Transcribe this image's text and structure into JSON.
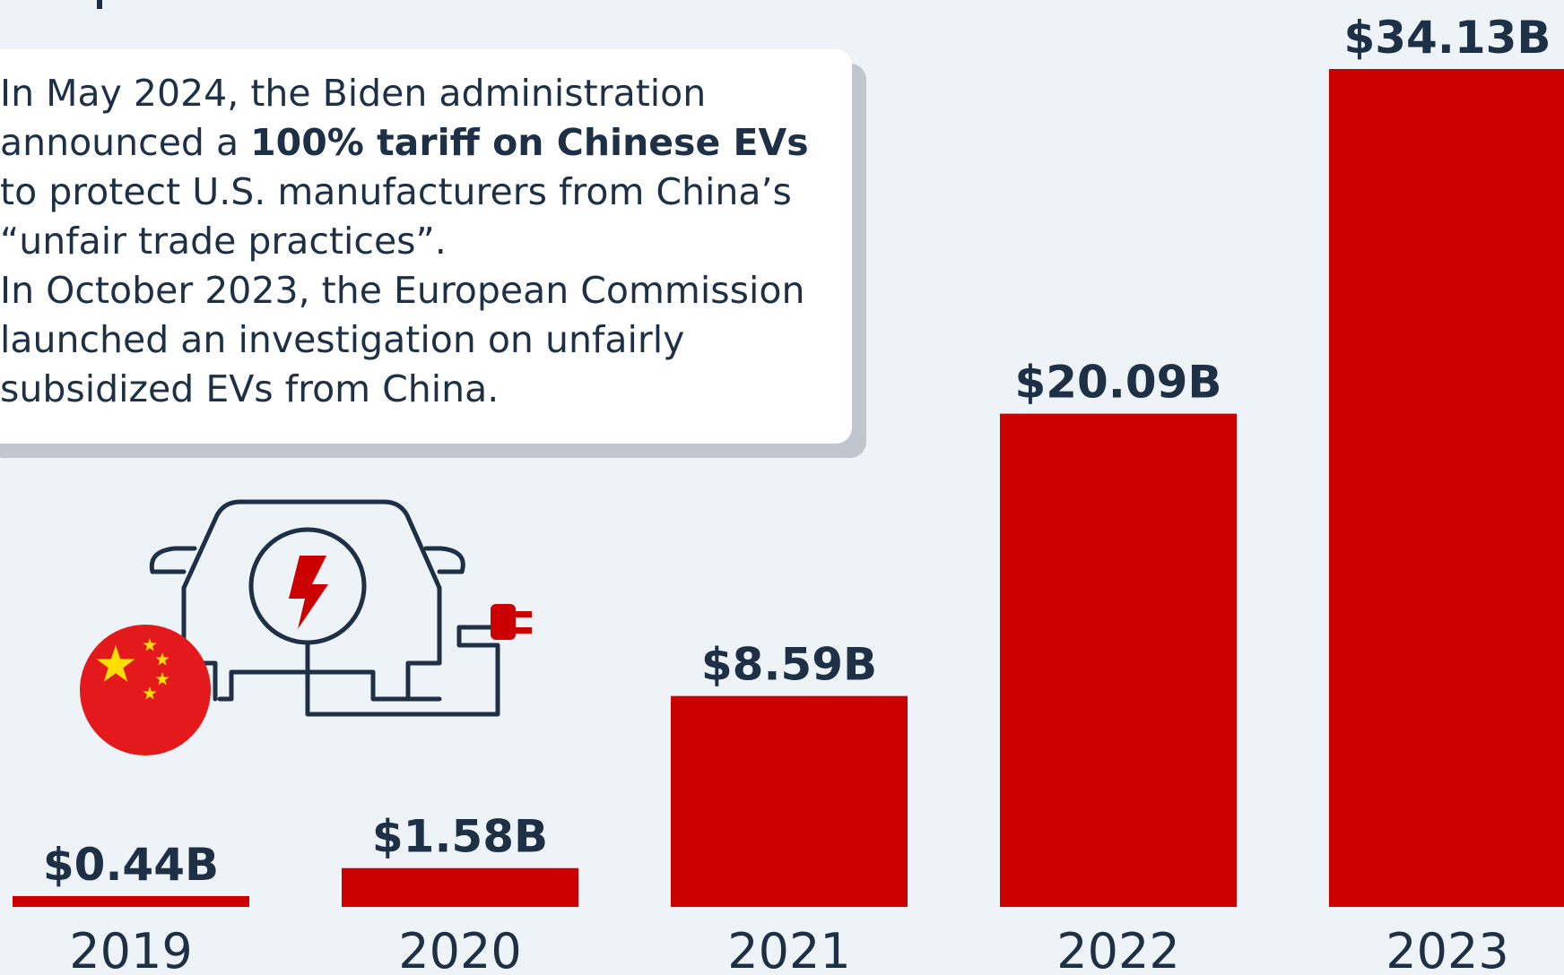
{
  "note": {
    "line1": "In May 2024, the Biden administration",
    "line2_pre": "announced a ",
    "line2_bold": "100% tariff on Chinese EVs",
    "line3": "to protect U.S. manufacturers from China’s",
    "line4": "“unfair trade practices”.",
    "line5": "In October 2023, the European Commission",
    "line6": "launched an investigation on unfairly",
    "line7": "subsidized EVs from China."
  },
  "colors": {
    "bar": "#cc0000",
    "text": "#1e3045",
    "background": "#eef3f8",
    "flag_red": "#e3191b",
    "flag_star": "#ffde00"
  },
  "icons": [
    "electric-car-icon",
    "china-flag-icon",
    "plug-icon",
    "lightning-bolt-icon"
  ],
  "chart_data": {
    "type": "bar",
    "categories": [
      "2019",
      "2020",
      "2021",
      "2022",
      "2023"
    ],
    "values": [
      0.44,
      1.58,
      8.59,
      20.09,
      34.13
    ],
    "labels": [
      "$0.44B",
      "$1.58B",
      "$8.59B",
      "$20.09B",
      "$34.13B"
    ],
    "unit": "B",
    "title": "",
    "xlabel": "",
    "ylabel": "",
    "ylim": [
      0,
      34.13
    ],
    "grid": false,
    "legend": "none"
  }
}
